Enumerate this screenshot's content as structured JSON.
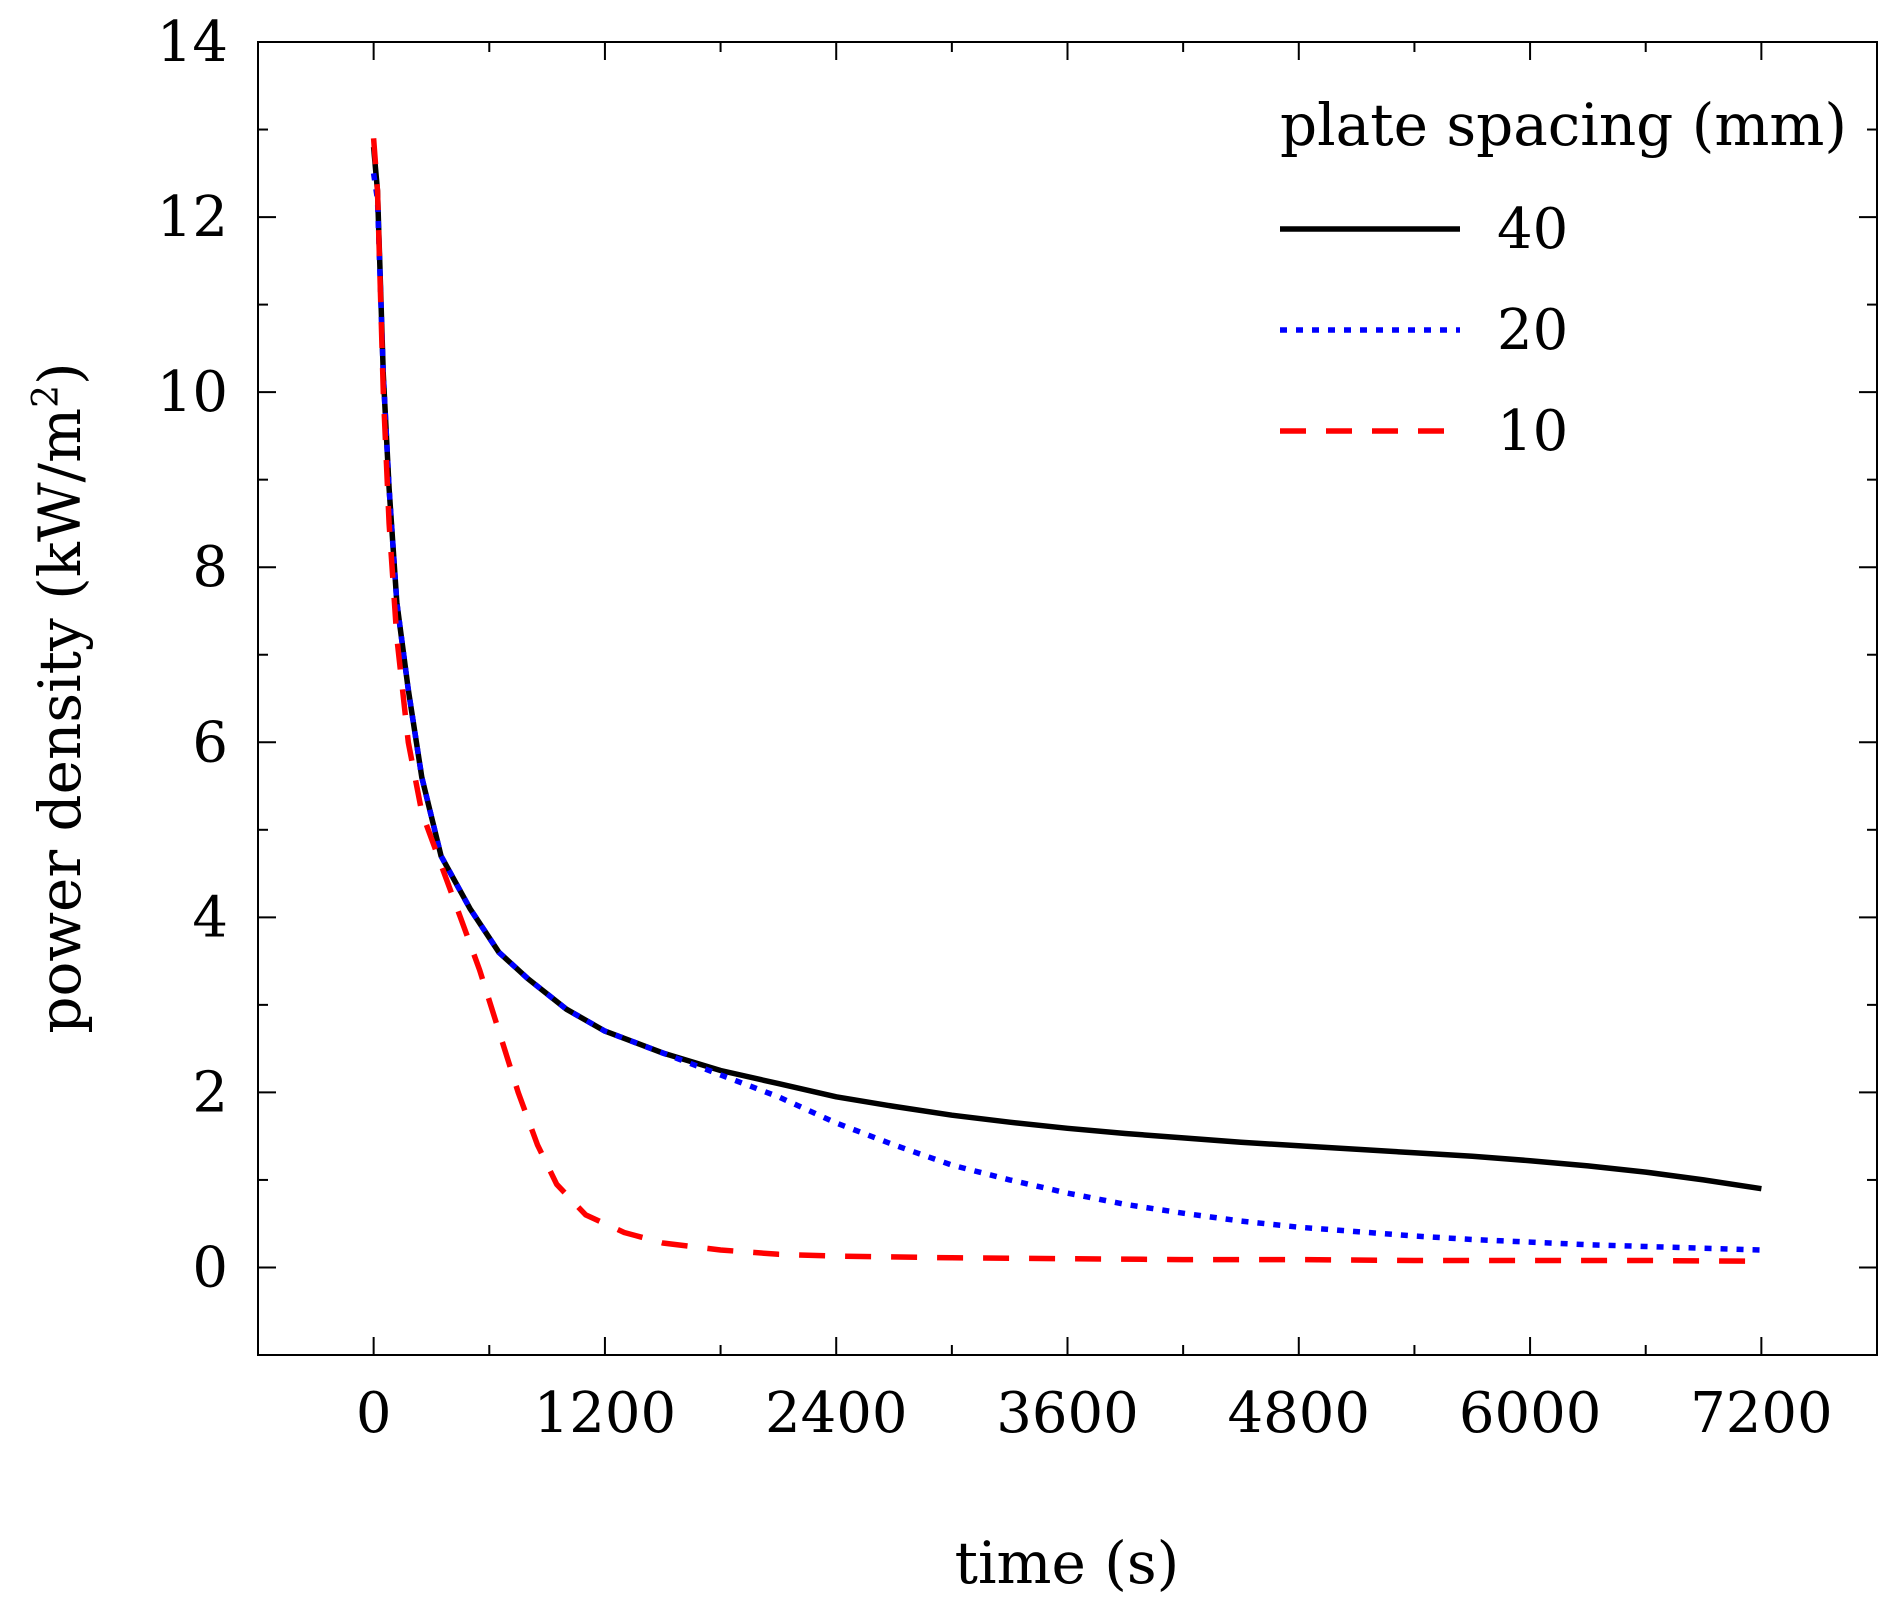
{
  "chart_data": {
    "type": "line",
    "xlabel": "time (s)",
    "ylabel": "power density (kW/m",
    "ylabel_superscript": "2",
    "ylabel_close": ")",
    "xlim": [
      -600,
      7800
    ],
    "ylim": [
      -1,
      14
    ],
    "x_ticks": [
      0,
      1200,
      2400,
      3600,
      4800,
      6000,
      7200
    ],
    "x_tick_labels": [
      "0",
      "1200",
      "2400",
      "3600",
      "4800",
      "6000",
      "7200"
    ],
    "x_minor_ticks": [
      600,
      1800,
      3000,
      4200,
      5400,
      6600
    ],
    "y_ticks": [
      0,
      2,
      4,
      6,
      8,
      10,
      12,
      14
    ],
    "y_tick_labels": [
      "0",
      "2",
      "4",
      "6",
      "8",
      "10",
      "12",
      "14"
    ],
    "y_minor_ticks": [
      -1,
      1,
      3,
      5,
      7,
      9,
      11,
      13
    ],
    "grid": false,
    "legend": {
      "title": "plate spacing (mm)",
      "placement": "top-right"
    },
    "series": [
      {
        "name": "40",
        "color": "#000000",
        "style": "solid",
        "points": [
          [
            0,
            12.8
          ],
          [
            20,
            12.3
          ],
          [
            50,
            10.2
          ],
          [
            80,
            8.9
          ],
          [
            120,
            7.6
          ],
          [
            180,
            6.6
          ],
          [
            250,
            5.6
          ],
          [
            350,
            4.7
          ],
          [
            500,
            4.1
          ],
          [
            650,
            3.6
          ],
          [
            800,
            3.3
          ],
          [
            1000,
            2.95
          ],
          [
            1200,
            2.7
          ],
          [
            1500,
            2.45
          ],
          [
            1800,
            2.25
          ],
          [
            2100,
            2.1
          ],
          [
            2400,
            1.95
          ],
          [
            2700,
            1.84
          ],
          [
            3000,
            1.74
          ],
          [
            3300,
            1.66
          ],
          [
            3600,
            1.59
          ],
          [
            3900,
            1.53
          ],
          [
            4200,
            1.48
          ],
          [
            4500,
            1.43
          ],
          [
            4800,
            1.39
          ],
          [
            5100,
            1.35
          ],
          [
            5400,
            1.31
          ],
          [
            5700,
            1.27
          ],
          [
            6000,
            1.22
          ],
          [
            6300,
            1.16
          ],
          [
            6600,
            1.09
          ],
          [
            6900,
            1.0
          ],
          [
            7200,
            0.9
          ]
        ]
      },
      {
        "name": "20",
        "color": "#0000ff",
        "style": "dotted",
        "points": [
          [
            0,
            12.5
          ],
          [
            20,
            12.2
          ],
          [
            50,
            10.2
          ],
          [
            80,
            8.9
          ],
          [
            120,
            7.6
          ],
          [
            180,
            6.6
          ],
          [
            250,
            5.6
          ],
          [
            350,
            4.7
          ],
          [
            500,
            4.1
          ],
          [
            650,
            3.6
          ],
          [
            800,
            3.3
          ],
          [
            1000,
            2.95
          ],
          [
            1200,
            2.7
          ],
          [
            1500,
            2.45
          ],
          [
            1800,
            2.2
          ],
          [
            2100,
            1.95
          ],
          [
            2400,
            1.65
          ],
          [
            2700,
            1.4
          ],
          [
            3000,
            1.17
          ],
          [
            3300,
            1.0
          ],
          [
            3600,
            0.85
          ],
          [
            3900,
            0.72
          ],
          [
            4200,
            0.62
          ],
          [
            4500,
            0.53
          ],
          [
            4800,
            0.46
          ],
          [
            5100,
            0.41
          ],
          [
            5400,
            0.36
          ],
          [
            5700,
            0.32
          ],
          [
            6000,
            0.29
          ],
          [
            6300,
            0.26
          ],
          [
            6600,
            0.24
          ],
          [
            6900,
            0.22
          ],
          [
            7200,
            0.2
          ]
        ]
      },
      {
        "name": "10",
        "color": "#ff0000",
        "style": "dashed",
        "points": [
          [
            0,
            12.9
          ],
          [
            20,
            12.3
          ],
          [
            50,
            10.0
          ],
          [
            80,
            8.5
          ],
          [
            120,
            7.2
          ],
          [
            180,
            6.0
          ],
          [
            250,
            5.2
          ],
          [
            350,
            4.6
          ],
          [
            450,
            4.0
          ],
          [
            550,
            3.4
          ],
          [
            650,
            2.7
          ],
          [
            750,
            2.0
          ],
          [
            850,
            1.4
          ],
          [
            950,
            0.95
          ],
          [
            1100,
            0.6
          ],
          [
            1300,
            0.4
          ],
          [
            1500,
            0.28
          ],
          [
            1800,
            0.2
          ],
          [
            2100,
            0.15
          ],
          [
            2400,
            0.13
          ],
          [
            3000,
            0.11
          ],
          [
            3600,
            0.1
          ],
          [
            4200,
            0.09
          ],
          [
            4800,
            0.09
          ],
          [
            5400,
            0.08
          ],
          [
            6000,
            0.08
          ],
          [
            6600,
            0.08
          ],
          [
            7200,
            0.07
          ]
        ]
      }
    ]
  }
}
